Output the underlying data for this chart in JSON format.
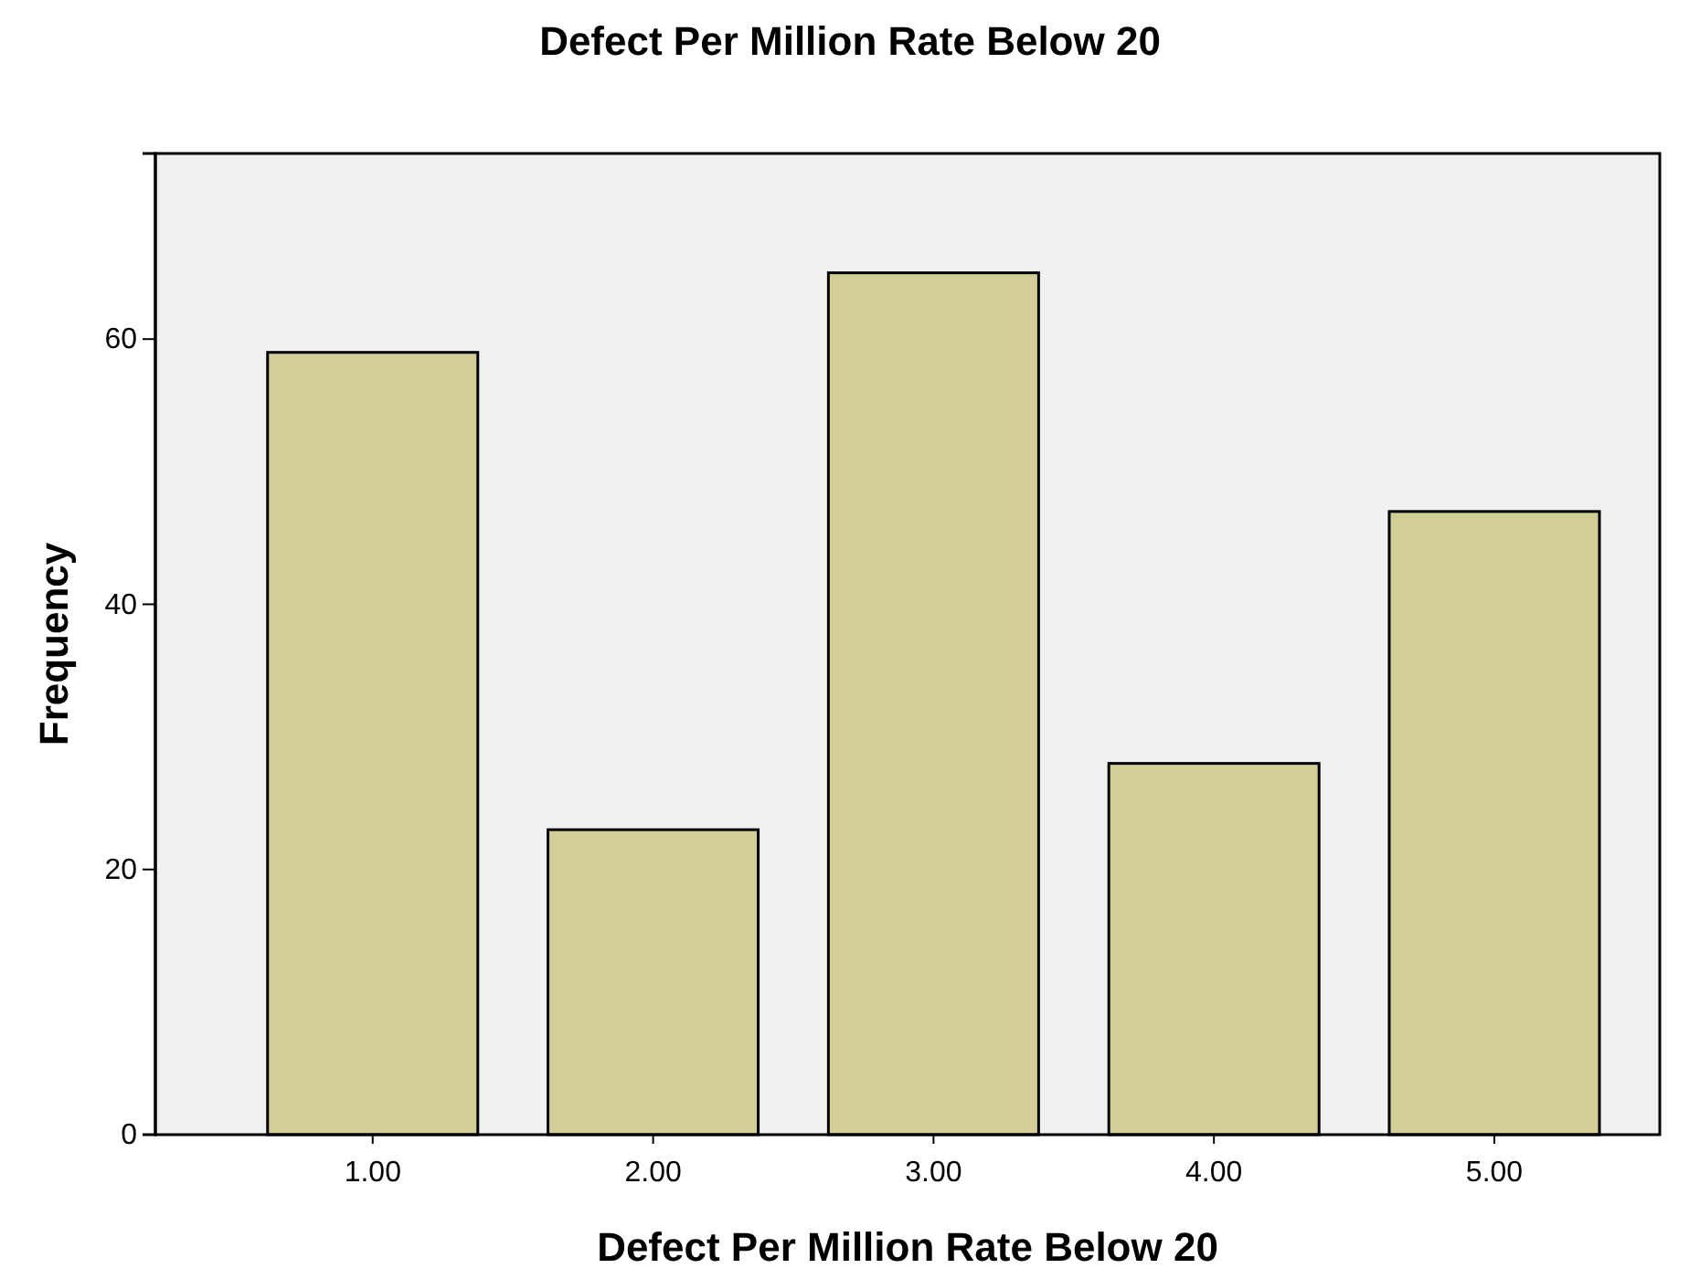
{
  "chart_data": {
    "type": "bar",
    "title": "Defect Per Million Rate Below 20",
    "xlabel": "Defect Per Million Rate Below 20",
    "ylabel": "Frequency",
    "categories": [
      "1.00",
      "2.00",
      "3.00",
      "4.00",
      "5.00"
    ],
    "values": [
      59,
      23,
      65,
      28,
      47
    ],
    "color": "#d3ce98",
    "ylim": [
      0,
      74
    ],
    "yticks": [
      0,
      20,
      40,
      60
    ],
    "grid": false
  }
}
